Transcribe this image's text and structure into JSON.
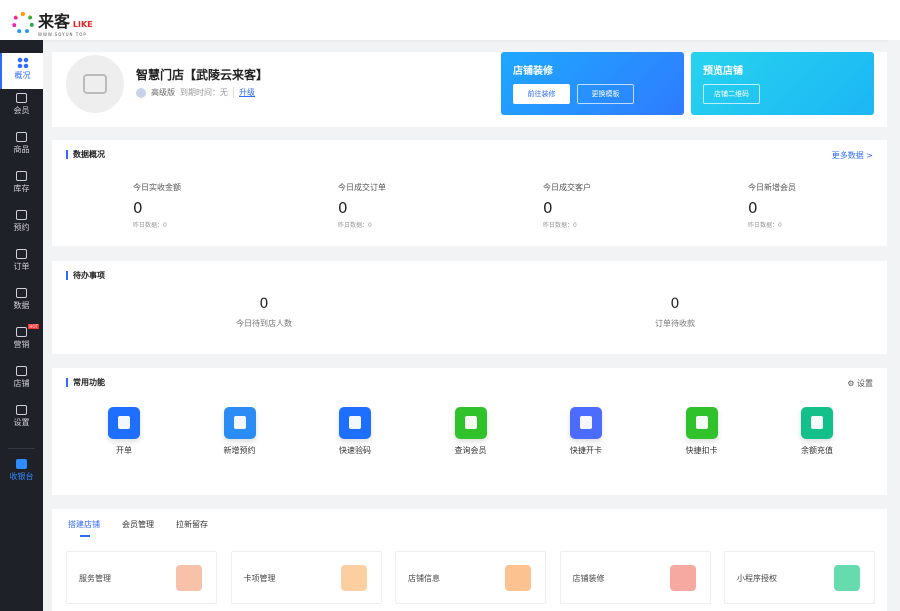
{
  "header": {
    "logo_cn": "来客",
    "logo_like": "LIKE",
    "logo_url": "WWW.SOYUN.TOP"
  },
  "sidebar": {
    "items": [
      {
        "label": "概况",
        "icon": "grid-icon",
        "active": true
      },
      {
        "label": "会员",
        "icon": "crown-icon"
      },
      {
        "label": "商品",
        "icon": "box-icon"
      },
      {
        "label": "库存",
        "icon": "warehouse-icon"
      },
      {
        "label": "预约",
        "icon": "calendar-check-icon"
      },
      {
        "label": "订单",
        "icon": "clipboard-icon"
      },
      {
        "label": "数据",
        "icon": "chart-icon"
      },
      {
        "label": "营销",
        "icon": "shop-bag-icon",
        "badge": "HOT"
      },
      {
        "label": "店铺",
        "icon": "store-icon"
      },
      {
        "label": "设置",
        "icon": "gear-icon"
      }
    ],
    "cashier": "收银台"
  },
  "store": {
    "name": "智慧门店【武陵云来客】",
    "edition": "高级版",
    "expire": "到期时间：无",
    "upgrade": "升级"
  },
  "banners": [
    {
      "title": "店铺装修",
      "buttons": [
        "前往装修",
        "更换模板"
      ]
    },
    {
      "title": "预览店铺",
      "buttons": [
        "店铺二维码"
      ]
    }
  ],
  "overview": {
    "title": "数据概况",
    "more": "更多数据 >",
    "stats": [
      {
        "label": "今日实收金额",
        "value": "0",
        "sub": "昨日数据：0"
      },
      {
        "label": "今日成交订单",
        "value": "0",
        "sub": "昨日数据：0"
      },
      {
        "label": "今日成交客户",
        "value": "0",
        "sub": "昨日数据：0"
      },
      {
        "label": "今日新增会员",
        "value": "0",
        "sub": "昨日数据：0"
      }
    ]
  },
  "todo": {
    "title": "待办事项",
    "items": [
      {
        "value": "0",
        "label": "今日待到店人数"
      },
      {
        "value": "0",
        "label": "订单待收款"
      }
    ]
  },
  "functions": {
    "title": "常用功能",
    "settings": "设置",
    "items": [
      {
        "label": "开单",
        "color": "#1f6fff"
      },
      {
        "label": "新增预约",
        "color": "#2b8cf5"
      },
      {
        "label": "快速验码",
        "color": "#1f6fff"
      },
      {
        "label": "查询会员",
        "color": "#2fc22a"
      },
      {
        "label": "快捷开卡",
        "color": "#4c6bff"
      },
      {
        "label": "快捷扣卡",
        "color": "#2fc22a"
      },
      {
        "label": "余额充值",
        "color": "#13c08a"
      }
    ]
  },
  "guide": {
    "tabs": [
      "搭建店铺",
      "会员管理",
      "拉新留存"
    ],
    "tiles": [
      {
        "label": "服务管理",
        "color": "#f7b79b"
      },
      {
        "label": "卡项管理",
        "color": "#fbc78f"
      },
      {
        "label": "店铺信息",
        "color": "#fbb77b"
      },
      {
        "label": "店铺装修",
        "color": "#f59a90"
      },
      {
        "label": "小程序授权",
        "color": "#4bd6a0"
      }
    ]
  }
}
